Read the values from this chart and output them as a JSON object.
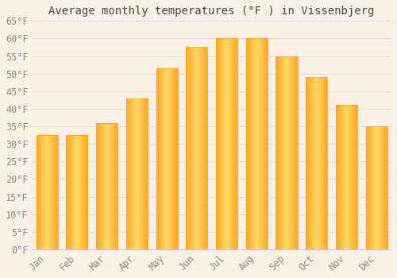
{
  "title": "Average monthly temperatures (°F ) in Vissenbjerg",
  "months": [
    "Jan",
    "Feb",
    "Mar",
    "Apr",
    "May",
    "Jun",
    "Jul",
    "Aug",
    "Sep",
    "Oct",
    "Nov",
    "Dec"
  ],
  "values": [
    32.5,
    32.5,
    36.0,
    43.0,
    51.5,
    57.5,
    60.0,
    60.0,
    55.0,
    49.0,
    41.0,
    35.0
  ],
  "bar_color_center": "#FFD966",
  "bar_color_edge": "#F5A623",
  "ylim": [
    0,
    65
  ],
  "ytick_step": 5,
  "background_color": "#FAF0E6",
  "plot_bg_color": "#FAF0E6",
  "grid_color": "#DDDDDD",
  "title_fontsize": 10,
  "tick_fontsize": 8.5,
  "font_family": "monospace",
  "tick_color": "#888888",
  "spine_color": "#CCCCCC"
}
